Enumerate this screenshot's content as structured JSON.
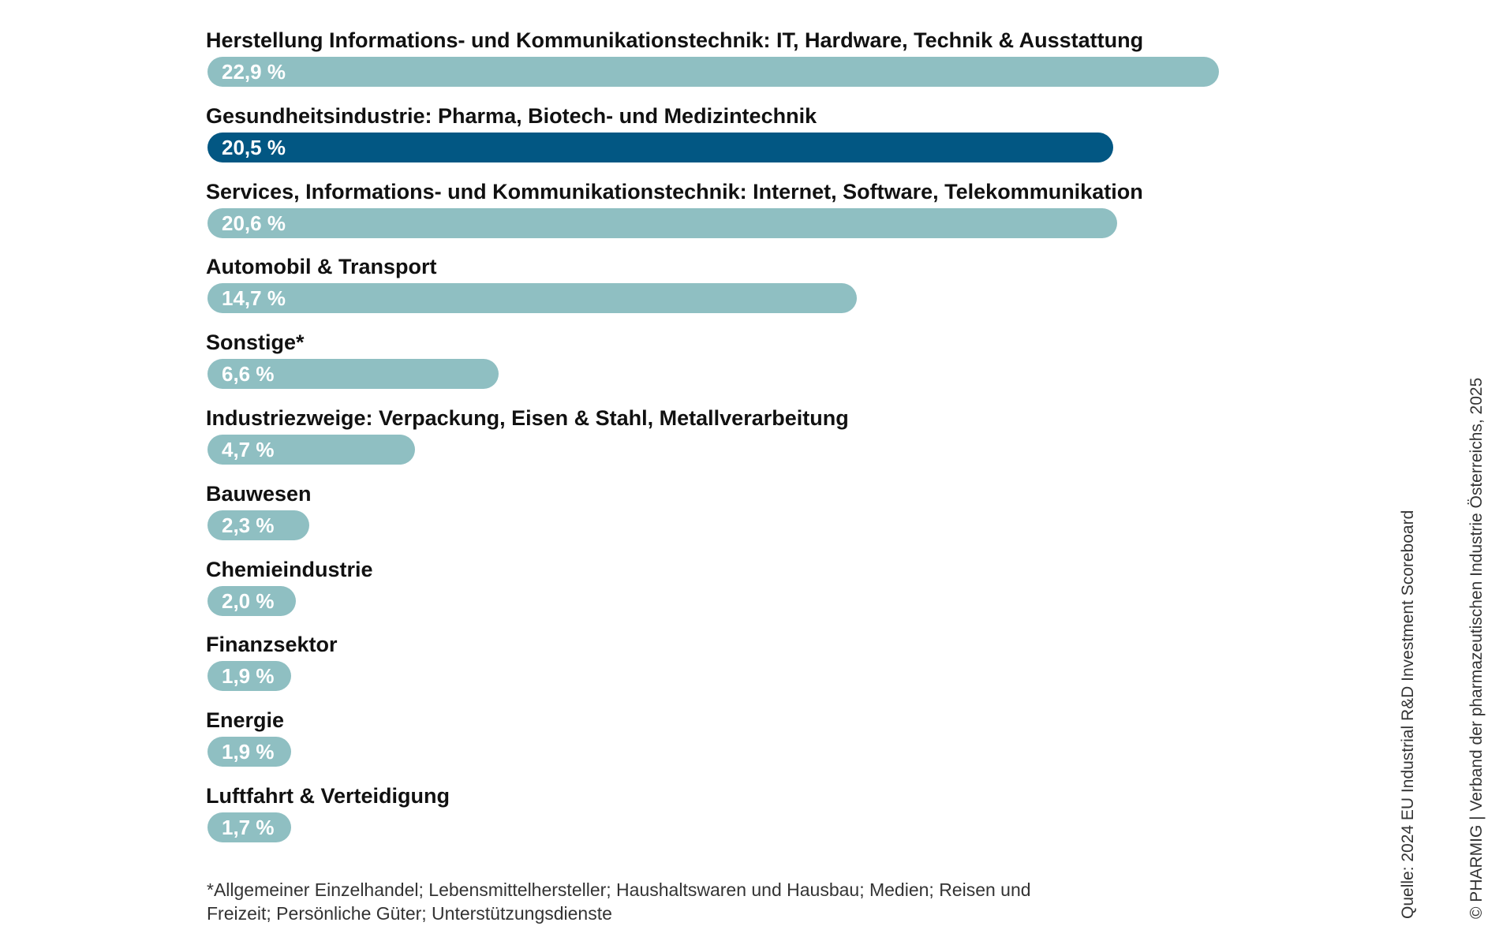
{
  "chart_data": {
    "type": "bar",
    "orientation": "horizontal",
    "unit": "%",
    "categories": [
      "Herstellung Informations- und Kommunikationstechnik: IT, Hardware, Technik & Ausstattung",
      "Gesundheitsindustrie: Pharma, Biotech- und Medizintechnik",
      "Services, Informations- und Kommunikationstechnik: Internet, Software, Telekommunikation",
      "Automobil & Transport",
      "Sonstige*",
      "Industriezweige: Verpackung, Eisen & Stahl, Metallverarbeitung",
      "Bauwesen",
      "Chemieindustrie",
      "Finanzsektor",
      "Energie",
      "Luftfahrt & Verteidigung"
    ],
    "values": [
      22.9,
      20.5,
      20.6,
      14.7,
      6.6,
      4.7,
      2.3,
      2.0,
      1.9,
      1.9,
      1.7
    ],
    "value_labels": [
      "22,9 %",
      "20,5 %",
      "20,6 %",
      "14,7 %",
      "6,6 %",
      "4,7 %",
      "2,3 %",
      "2,0 %",
      "1,9 %",
      "1,9 %",
      "1,7 %"
    ],
    "highlight_index": 1,
    "xlim": [
      0,
      22.9
    ],
    "grid": false,
    "legend": "none"
  },
  "colors": {
    "bar": "#8fbfc2",
    "highlight": "#025783",
    "value_text": "#ffffff"
  },
  "footnote": "*Allgemeiner Einzelhandel; Lebensmittelhersteller; Haushaltswaren und Hausbau; Medien; Reisen und Freizeit; Persönliche Güter; Unterstützungsdienste",
  "source": "Quelle: 2024 EU Industrial R&D Investment Scoreboard",
  "copyright": "© PHARMIG | Verband der pharmazeutischen Industrie Österreichs, 2025"
}
